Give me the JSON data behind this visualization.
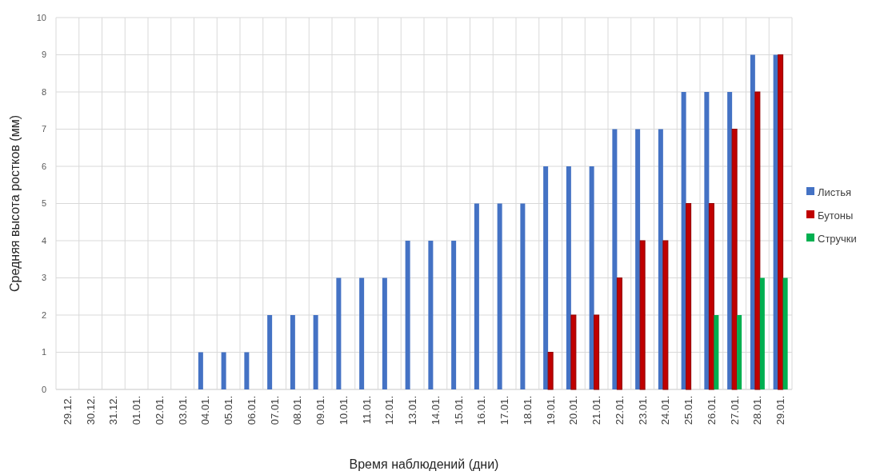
{
  "chart_data": {
    "type": "bar",
    "xlabel": "Время наблюдений (дни)",
    "ylabel": "Средняя высота ростков (мм)",
    "categories": [
      "29.12.",
      "30.12.",
      "31.12.",
      "01.01.",
      "02.01.",
      "03.01.",
      "04.01.",
      "05.01.",
      "06.01.",
      "07.01.",
      "08.01.",
      "09.01.",
      "10.01.",
      "11.01.",
      "12.01.",
      "13.01.",
      "14.01.",
      "15.01.",
      "16.01.",
      "17.01.",
      "18.01.",
      "19.01.",
      "20.01.",
      "21.01.",
      "22.01.",
      "23.01.",
      "24.01.",
      "25.01.",
      "26.01.",
      "27.01.",
      "28.01.",
      "29.01."
    ],
    "series": [
      {
        "name": "Листья",
        "color": "#4472c4",
        "values": [
          0,
          0,
          0,
          0,
          0,
          0,
          1,
          1,
          1,
          2,
          2,
          2,
          3,
          3,
          3,
          4,
          4,
          4,
          5,
          5,
          5,
          6,
          6,
          6,
          7,
          7,
          7,
          8,
          8,
          8,
          9,
          9
        ]
      },
      {
        "name": "Бутоны",
        "color": "#c00000",
        "values": [
          0,
          0,
          0,
          0,
          0,
          0,
          0,
          0,
          0,
          0,
          0,
          0,
          0,
          0,
          0,
          0,
          0,
          0,
          0,
          0,
          0,
          1,
          2,
          2,
          3,
          4,
          4,
          5,
          5,
          7,
          8,
          9
        ]
      },
      {
        "name": "Стручки",
        "color": "#00b050",
        "values": [
          0,
          0,
          0,
          0,
          0,
          0,
          0,
          0,
          0,
          0,
          0,
          0,
          0,
          0,
          0,
          0,
          0,
          0,
          0,
          0,
          0,
          0,
          0,
          0,
          0,
          0,
          0,
          0,
          2,
          2,
          3,
          3
        ]
      }
    ],
    "ylim": [
      0,
      10
    ],
    "yticks": [
      0,
      1,
      2,
      3,
      4,
      5,
      6,
      7,
      8,
      9,
      10
    ],
    "grid": true,
    "legend": "right"
  }
}
